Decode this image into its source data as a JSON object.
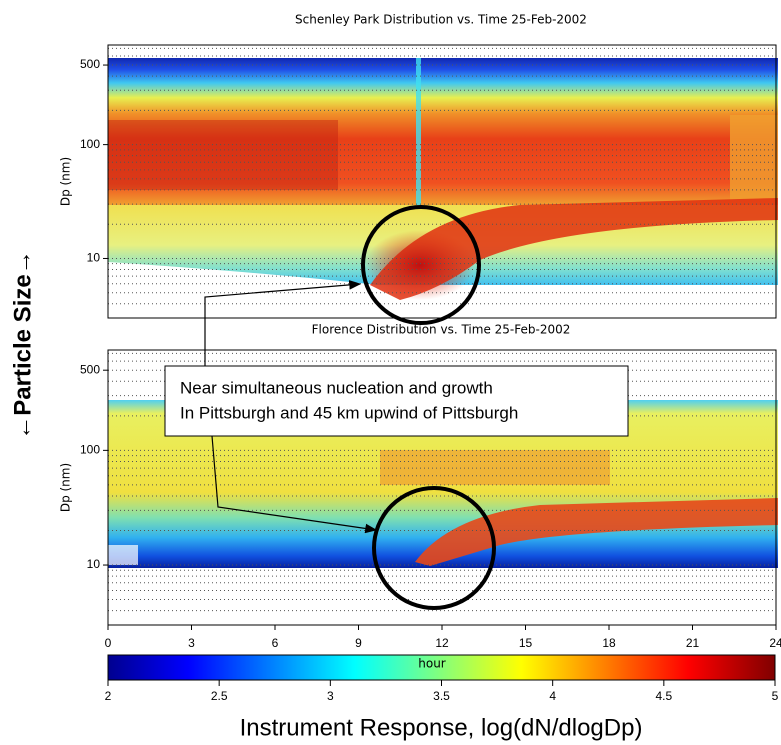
{
  "chart_data": [
    {
      "type": "heatmap",
      "title": "Schenley Park Distribution vs. Time  25-Feb-2002",
      "ylabel": "Dp (nm)",
      "log_y": true,
      "ylim": [
        3,
        750
      ],
      "yticks": [
        10,
        100,
        500
      ],
      "xlim": [
        0,
        24
      ]
    },
    {
      "type": "heatmap",
      "title": "Florence Distribution vs. Time  25-Feb-2002",
      "ylabel": "Dp (nm)",
      "log_y": true,
      "ylim": [
        3,
        750
      ],
      "yticks": [
        10,
        100,
        500
      ],
      "xlim": [
        0,
        24
      ],
      "xticks": [
        0,
        3,
        6,
        9,
        12,
        15,
        18,
        21,
        24
      ],
      "xlabel": "hour"
    }
  ],
  "colorbar": {
    "label": "Instrument Response, log(dN/dlogDp)",
    "lim": [
      2,
      5
    ],
    "ticks": [
      2,
      2.5,
      3,
      3.5,
      4,
      4.5,
      5
    ]
  },
  "figure_label": "←Particle Size→",
  "annotation": [
    "Near simultaneous nucleation and growth",
    "In Pittsburgh and 45 km upwind of Pittsburgh"
  ]
}
